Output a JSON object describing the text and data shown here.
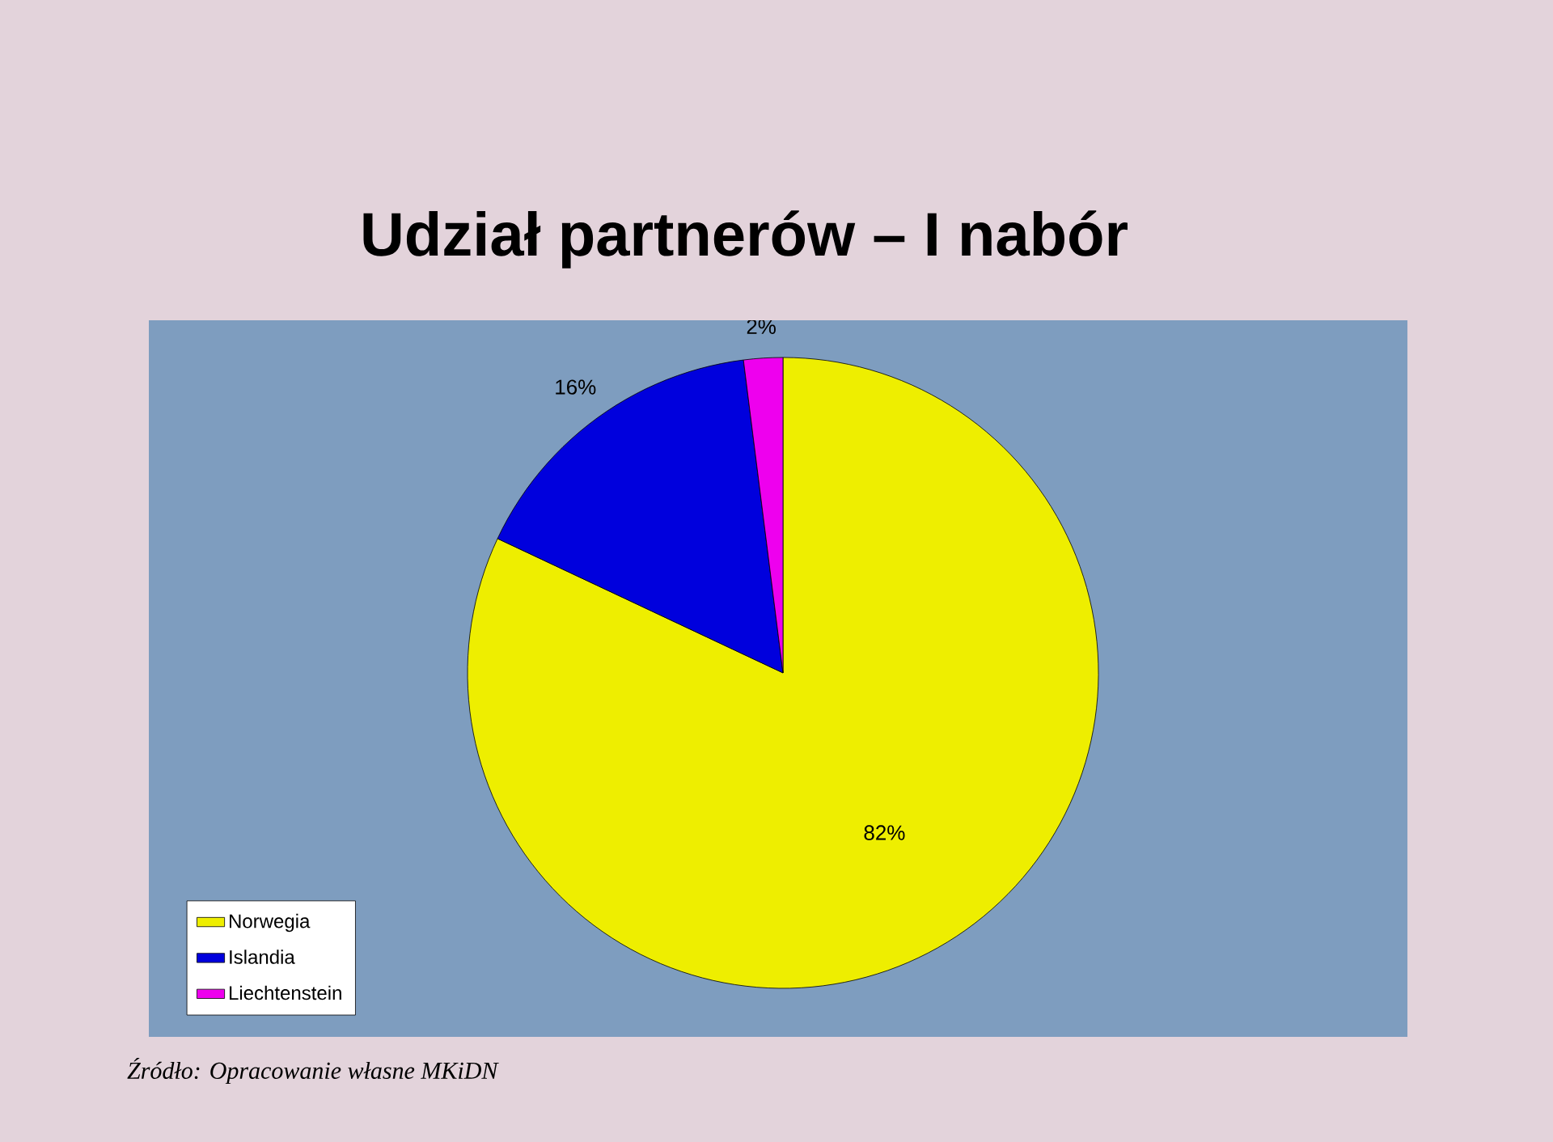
{
  "chart_data": {
    "type": "pie",
    "title": "Udział partnerów – I nabór",
    "categories": [
      "Norwegia",
      "Islandia",
      "Liechtenstein"
    ],
    "values": [
      82,
      16,
      2
    ],
    "value_labels": [
      "82%",
      "16%",
      "2%"
    ],
    "colors": [
      "#eeee00",
      "#0000dd",
      "#ee00ee"
    ],
    "legend": "bottom left",
    "annotations": [
      "*Źródło: Opracowanie własne MKiDN*"
    ]
  }
}
